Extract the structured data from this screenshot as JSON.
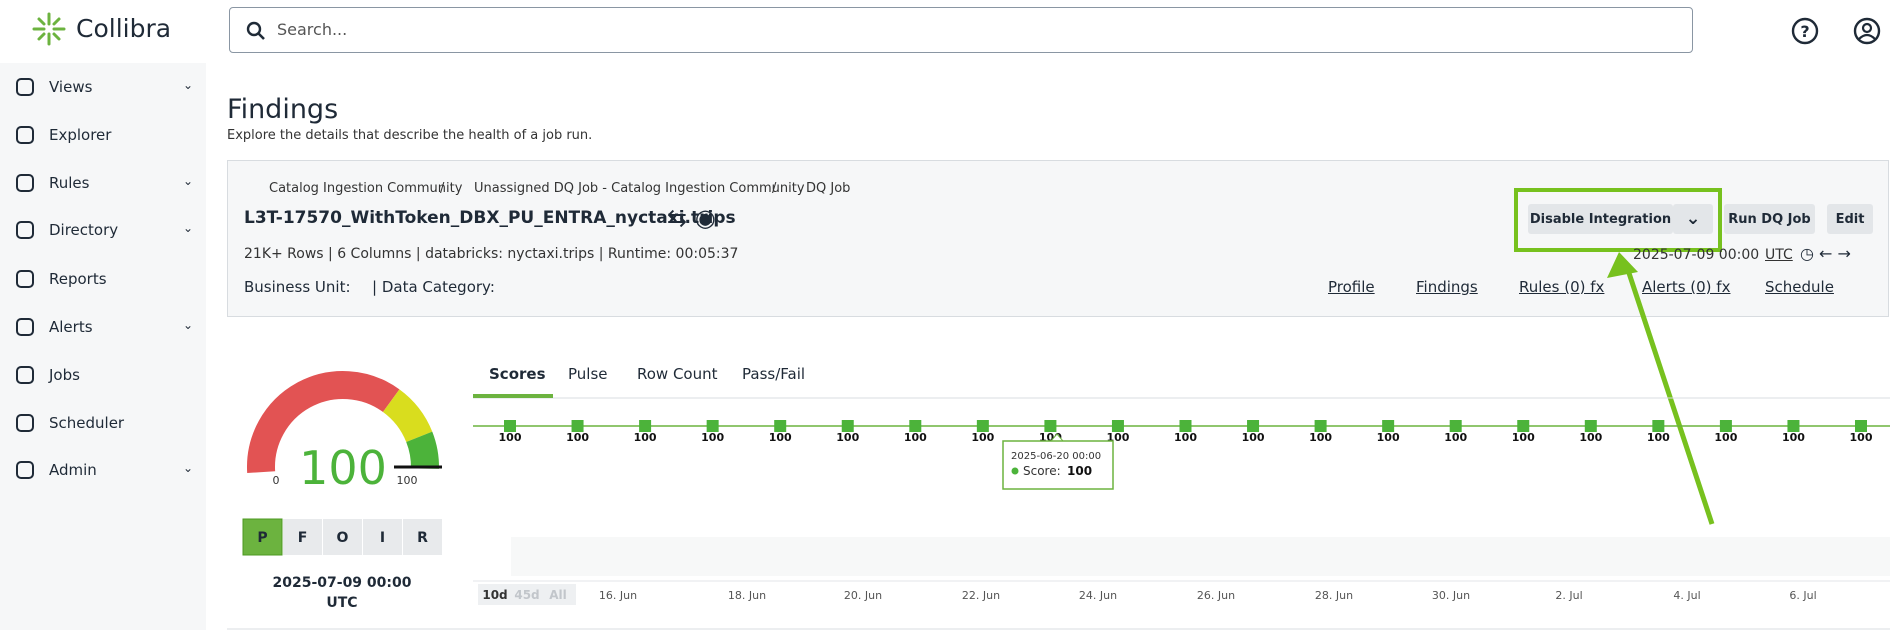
{
  "header": {
    "logo": "Collibra",
    "search_placeholder": "Search..."
  },
  "sidebar": {
    "items": [
      {
        "label": "Views",
        "expandable": true
      },
      {
        "label": "Explorer",
        "expandable": false
      },
      {
        "label": "Rules",
        "expandable": true
      },
      {
        "label": "Directory",
        "expandable": true
      },
      {
        "label": "Reports",
        "expandable": false
      },
      {
        "label": "Alerts",
        "expandable": true
      },
      {
        "label": "Jobs",
        "expandable": false
      },
      {
        "label": "Scheduler",
        "expandable": false
      },
      {
        "label": "Admin",
        "expandable": true
      }
    ]
  },
  "page": {
    "title": "Findings",
    "subtitle": "Explore the details that describe the health of a job run."
  },
  "job": {
    "breadcrumb": [
      "Catalog Ingestion Community",
      "/",
      "Unassigned DQ Job - Catalog Ingestion Community",
      "/",
      "DQ Job"
    ],
    "name": "L3T-17570_WithToken_DBX_PU_ENTRA_nyctaxi.trips",
    "meta": "21K+ Rows | 6 Columns | databricks: nyctaxi.trips | Runtime: 00:05:37",
    "business_unit_label": "Business Unit:",
    "data_category_label": "| Data Category:",
    "buttons": [
      "Disable Integration",
      "Run DQ Job",
      "Edit"
    ],
    "run_time": "2025-07-09 00:00",
    "timezone": "UTC",
    "links": [
      "Profile",
      "Findings",
      "Rules (0) fx",
      "Alerts (0) fx",
      "Schedule"
    ]
  },
  "gauge": {
    "value": 100,
    "min": 0,
    "max": 100,
    "grades": [
      "P",
      "F",
      "O",
      "I",
      "R"
    ],
    "date": "2025-07-09 00:00",
    "timezone": "UTC"
  },
  "tabs": [
    "Scores",
    "Pulse",
    "Row Count",
    "Pass/Fail"
  ],
  "chart": {
    "scores": [
      100,
      100,
      100,
      100,
      100,
      100,
      100,
      100,
      100,
      100,
      100,
      100,
      100,
      100,
      100,
      100,
      100,
      100,
      100,
      100,
      100
    ],
    "x_labels": [
      "16. Jun",
      "18. Jun",
      "20. Jun",
      "22. Jun",
      "24. Jun",
      "26. Jun",
      "28. Jun",
      "30. Jun",
      "2. Jul",
      "4. Jul",
      "6. Jul"
    ],
    "range_buttons": [
      "10d",
      "45d",
      "All"
    ],
    "tooltip": {
      "date": "2025-06-20 00:00",
      "label": "Score:",
      "value": 100
    }
  }
}
